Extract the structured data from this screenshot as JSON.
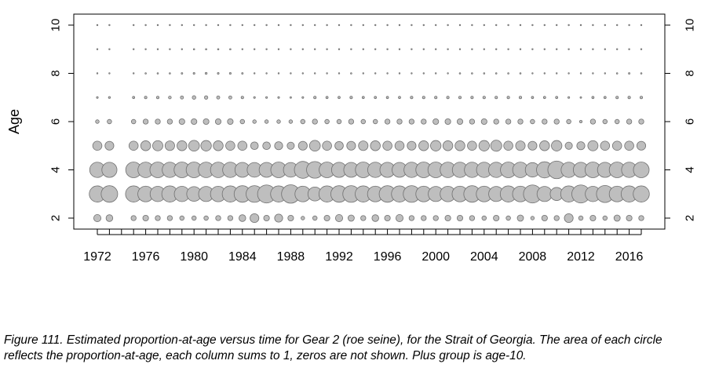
{
  "chart_data": {
    "type": "bubble",
    "ylabel": "Age",
    "x_range": [
      1972,
      2017
    ],
    "y_range": [
      2,
      10
    ],
    "x_ticks": [
      1972,
      1976,
      1980,
      1984,
      1988,
      1992,
      1996,
      2000,
      2004,
      2008,
      2012,
      2016
    ],
    "y_ticks": [
      2,
      4,
      6,
      8,
      10
    ],
    "right_axis_ticks": [
      2,
      4,
      6,
      8,
      10
    ],
    "grid": false,
    "marker_color": "#bebebe",
    "marker_edge_color": "#707070",
    "encoding": "circle area proportional to proportion-at-age; each column sums to 1",
    "years": [
      1972,
      1973,
      1975,
      1976,
      1977,
      1978,
      1979,
      1980,
      1981,
      1982,
      1983,
      1984,
      1985,
      1986,
      1987,
      1988,
      1989,
      1990,
      1991,
      1992,
      1993,
      1994,
      1995,
      1996,
      1997,
      1998,
      1999,
      2000,
      2001,
      2002,
      2003,
      2004,
      2005,
      2006,
      2007,
      2008,
      2009,
      2010,
      2011,
      2012,
      2013,
      2014,
      2015,
      2016,
      2017
    ],
    "ages": [
      2,
      3,
      4,
      5,
      6,
      7,
      8,
      9,
      10
    ],
    "proportions": [
      [
        0.08,
        0.4,
        0.36,
        0.13,
        0.02,
        0.005,
        0.002,
        0.001,
        0.001
      ],
      [
        0.07,
        0.42,
        0.35,
        0.12,
        0.03,
        0.006,
        0.002,
        0.001,
        0.001
      ],
      [
        0.04,
        0.4,
        0.38,
        0.13,
        0.03,
        0.008,
        0.002,
        0.001,
        0.001
      ],
      [
        0.05,
        0.38,
        0.37,
        0.15,
        0.04,
        0.01,
        0.003,
        0.001,
        0.001
      ],
      [
        0.04,
        0.36,
        0.38,
        0.16,
        0.04,
        0.01,
        0.003,
        0.001,
        0.001
      ],
      [
        0.04,
        0.4,
        0.36,
        0.14,
        0.04,
        0.012,
        0.003,
        0.002,
        0.001
      ],
      [
        0.03,
        0.36,
        0.38,
        0.15,
        0.05,
        0.015,
        0.004,
        0.002,
        0.001
      ],
      [
        0.03,
        0.33,
        0.38,
        0.18,
        0.05,
        0.02,
        0.005,
        0.003,
        0.001
      ],
      [
        0.03,
        0.35,
        0.37,
        0.17,
        0.05,
        0.018,
        0.006,
        0.003,
        0.001
      ],
      [
        0.04,
        0.37,
        0.37,
        0.15,
        0.05,
        0.015,
        0.005,
        0.003,
        0.002
      ],
      [
        0.04,
        0.4,
        0.36,
        0.13,
        0.05,
        0.015,
        0.005,
        0.003,
        0.002
      ],
      [
        0.07,
        0.42,
        0.34,
        0.13,
        0.03,
        0.01,
        0.004,
        0.002,
        0.001
      ],
      [
        0.12,
        0.43,
        0.33,
        0.09,
        0.02,
        0.005,
        0.002,
        0.001,
        0.001
      ],
      [
        0.05,
        0.5,
        0.34,
        0.09,
        0.02,
        0.005,
        0.002,
        0.001,
        0.001
      ],
      [
        0.1,
        0.4,
        0.38,
        0.1,
        0.02,
        0.005,
        0.002,
        0.001,
        0.001
      ],
      [
        0.05,
        0.52,
        0.33,
        0.08,
        0.02,
        0.004,
        0.002,
        0.001,
        0.001
      ],
      [
        0.02,
        0.38,
        0.44,
        0.12,
        0.03,
        0.005,
        0.002,
        0.001,
        0.001
      ],
      [
        0.03,
        0.3,
        0.43,
        0.18,
        0.04,
        0.01,
        0.002,
        0.001,
        0.001
      ],
      [
        0.05,
        0.4,
        0.38,
        0.13,
        0.03,
        0.008,
        0.002,
        0.001,
        0.001
      ],
      [
        0.08,
        0.42,
        0.35,
        0.11,
        0.03,
        0.008,
        0.002,
        0.001,
        0.001
      ],
      [
        0.06,
        0.43,
        0.34,
        0.12,
        0.04,
        0.01,
        0.003,
        0.001,
        0.001
      ],
      [
        0.04,
        0.4,
        0.38,
        0.14,
        0.03,
        0.008,
        0.002,
        0.001,
        0.001
      ],
      [
        0.07,
        0.38,
        0.36,
        0.15,
        0.03,
        0.008,
        0.002,
        0.001,
        0.001
      ],
      [
        0.05,
        0.42,
        0.35,
        0.13,
        0.04,
        0.008,
        0.002,
        0.001,
        0.001
      ],
      [
        0.08,
        0.4,
        0.34,
        0.13,
        0.04,
        0.008,
        0.002,
        0.001,
        0.001
      ],
      [
        0.04,
        0.43,
        0.36,
        0.12,
        0.04,
        0.01,
        0.002,
        0.001,
        0.001
      ],
      [
        0.04,
        0.38,
        0.38,
        0.15,
        0.04,
        0.01,
        0.002,
        0.001,
        0.001
      ],
      [
        0.04,
        0.35,
        0.38,
        0.17,
        0.05,
        0.01,
        0.002,
        0.001,
        0.001
      ],
      [
        0.05,
        0.37,
        0.37,
        0.15,
        0.05,
        0.01,
        0.002,
        0.001,
        0.001
      ],
      [
        0.05,
        0.38,
        0.36,
        0.15,
        0.05,
        0.01,
        0.003,
        0.001,
        0.001
      ],
      [
        0.04,
        0.42,
        0.36,
        0.13,
        0.04,
        0.01,
        0.003,
        0.001,
        0.001
      ],
      [
        0.03,
        0.38,
        0.36,
        0.17,
        0.05,
        0.01,
        0.003,
        0.002,
        0.001
      ],
      [
        0.05,
        0.35,
        0.36,
        0.19,
        0.04,
        0.01,
        0.003,
        0.002,
        0.001
      ],
      [
        0.03,
        0.4,
        0.38,
        0.13,
        0.04,
        0.01,
        0.003,
        0.002,
        0.001
      ],
      [
        0.06,
        0.38,
        0.37,
        0.14,
        0.04,
        0.01,
        0.003,
        0.002,
        0.001
      ],
      [
        0.02,
        0.5,
        0.32,
        0.12,
        0.03,
        0.008,
        0.002,
        0.001,
        0.001
      ],
      [
        0.05,
        0.35,
        0.4,
        0.15,
        0.04,
        0.008,
        0.002,
        0.001,
        0.001
      ],
      [
        0.04,
        0.26,
        0.48,
        0.17,
        0.04,
        0.008,
        0.002,
        0.001,
        0.001
      ],
      [
        0.12,
        0.4,
        0.36,
        0.08,
        0.03,
        0.005,
        0.002,
        0.001,
        0.001
      ],
      [
        0.03,
        0.5,
        0.35,
        0.1,
        0.01,
        0.004,
        0.002,
        0.001,
        0.001
      ],
      [
        0.05,
        0.36,
        0.38,
        0.16,
        0.04,
        0.008,
        0.002,
        0.001,
        0.001
      ],
      [
        0.03,
        0.45,
        0.35,
        0.13,
        0.03,
        0.008,
        0.002,
        0.001,
        0.001
      ],
      [
        0.06,
        0.38,
        0.38,
        0.13,
        0.03,
        0.01,
        0.003,
        0.001,
        0.001
      ],
      [
        0.05,
        0.4,
        0.36,
        0.13,
        0.04,
        0.01,
        0.004,
        0.002,
        0.001
      ],
      [
        0.04,
        0.4,
        0.38,
        0.12,
        0.04,
        0.01,
        0.003,
        0.001,
        0.001
      ]
    ]
  },
  "caption": "Figure 111. Estimated proportion-at-age versus time for Gear 2 (roe seine), for the Strait of Georgia. The area of each circle reflects the proportion-at-age, each column sums to 1, zeros are not shown. Plus group is age-10."
}
